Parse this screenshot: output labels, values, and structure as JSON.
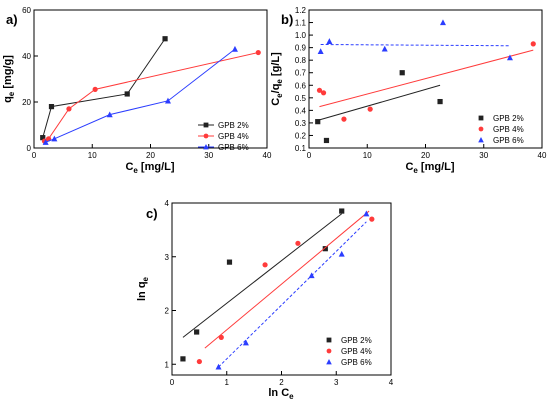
{
  "chart_data": [
    {
      "panel": "a)",
      "type": "line",
      "xlabel": "C_e [mg/L]",
      "ylabel": "q_e [mg/g]",
      "xlim": [
        0,
        40
      ],
      "ylim": [
        0,
        60
      ],
      "xticks": [
        0,
        10,
        20,
        30,
        40
      ],
      "yticks": [
        0,
        20,
        40,
        60
      ],
      "legend_position": "bottom-right",
      "series": [
        {
          "name": "GPB 2%",
          "marker": "square",
          "color": "#222222",
          "x": [
            1.5,
            3.0,
            16.0,
            22.5
          ],
          "y": [
            4.5,
            18.0,
            23.5,
            47.5
          ]
        },
        {
          "name": "GPB 4%",
          "marker": "circle",
          "color": "#ff3b3b",
          "x": [
            1.8,
            2.5,
            6.0,
            10.5,
            38.5
          ],
          "y": [
            3.0,
            4.0,
            17.0,
            25.5,
            41.5
          ]
        },
        {
          "name": "GPB 6%",
          "marker": "triangle",
          "color": "#2b3dff",
          "x": [
            2.0,
            3.5,
            13.0,
            23.0,
            34.5
          ],
          "y": [
            2.5,
            4.0,
            14.5,
            20.5,
            43.0
          ]
        }
      ]
    },
    {
      "panel": "b)",
      "type": "scatter",
      "xlabel": "C_e [mg/L]",
      "ylabel": "C_e/q_e [g/L]",
      "xlim": [
        0,
        40
      ],
      "ylim": [
        0.1,
        1.2
      ],
      "xticks": [
        0,
        10,
        20,
        30,
        40
      ],
      "yticks": [
        0.1,
        0.2,
        0.3,
        0.4,
        0.5,
        0.6,
        0.7,
        0.8,
        0.9,
        1.0,
        1.1,
        1.2
      ],
      "legend_position": "bottom-right",
      "series": [
        {
          "name": "GPB 2%",
          "marker": "square",
          "color": "#222222",
          "x": [
            1.5,
            3.0,
            16.0,
            22.5
          ],
          "y": [
            0.31,
            0.16,
            0.7,
            0.47
          ],
          "fit": [
            [
              1.5,
              0.32
            ],
            [
              22.5,
              0.6
            ]
          ]
        },
        {
          "name": "GPB 4%",
          "marker": "circle",
          "color": "#ff3b3b",
          "x": [
            1.8,
            2.5,
            6.0,
            10.5,
            38.5
          ],
          "y": [
            0.56,
            0.54,
            0.33,
            0.41,
            0.93
          ],
          "fit": [
            [
              1.8,
              0.43
            ],
            [
              38.5,
              0.88
            ]
          ]
        },
        {
          "name": "GPB 6%",
          "marker": "triangle",
          "color": "#2b3dff",
          "x": [
            2.0,
            3.5,
            13.0,
            23.0,
            34.5
          ],
          "y": [
            0.87,
            0.95,
            0.89,
            1.1,
            0.82
          ],
          "fit": [
            [
              2.0,
              0.925
            ],
            [
              34.5,
              0.915
            ]
          ]
        }
      ]
    },
    {
      "panel": "c)",
      "type": "scatter",
      "xlabel": "ln C_e",
      "ylabel": "ln q_e",
      "xlim": [
        0,
        4
      ],
      "ylim": [
        0.8,
        4
      ],
      "xticks": [
        0,
        1,
        2,
        3,
        4
      ],
      "yticks": [
        1,
        2,
        3,
        4
      ],
      "legend_position": "bottom-right",
      "series": [
        {
          "name": "GPB 2%",
          "marker": "square",
          "color": "#222222",
          "x": [
            0.2,
            0.45,
            1.05,
            2.8,
            3.1
          ],
          "y": [
            1.1,
            1.6,
            2.9,
            3.15,
            3.85
          ],
          "fit": [
            [
              0.2,
              1.5
            ],
            [
              3.1,
              3.8
            ]
          ]
        },
        {
          "name": "GPB 4%",
          "marker": "circle",
          "color": "#ff3b3b",
          "x": [
            0.5,
            0.9,
            1.7,
            2.3,
            3.65
          ],
          "y": [
            1.05,
            1.5,
            2.85,
            3.25,
            3.7
          ],
          "fit": [
            [
              0.6,
              1.3
            ],
            [
              3.6,
              3.85
            ]
          ]
        },
        {
          "name": "GPB 6%",
          "marker": "triangle",
          "color": "#2b3dff",
          "x": [
            0.85,
            1.35,
            2.55,
            3.1,
            3.55
          ],
          "y": [
            0.95,
            1.4,
            2.65,
            3.05,
            3.8
          ],
          "fit": [
            [
              0.85,
              0.95
            ],
            [
              3.55,
              3.65
            ]
          ]
        }
      ]
    }
  ]
}
